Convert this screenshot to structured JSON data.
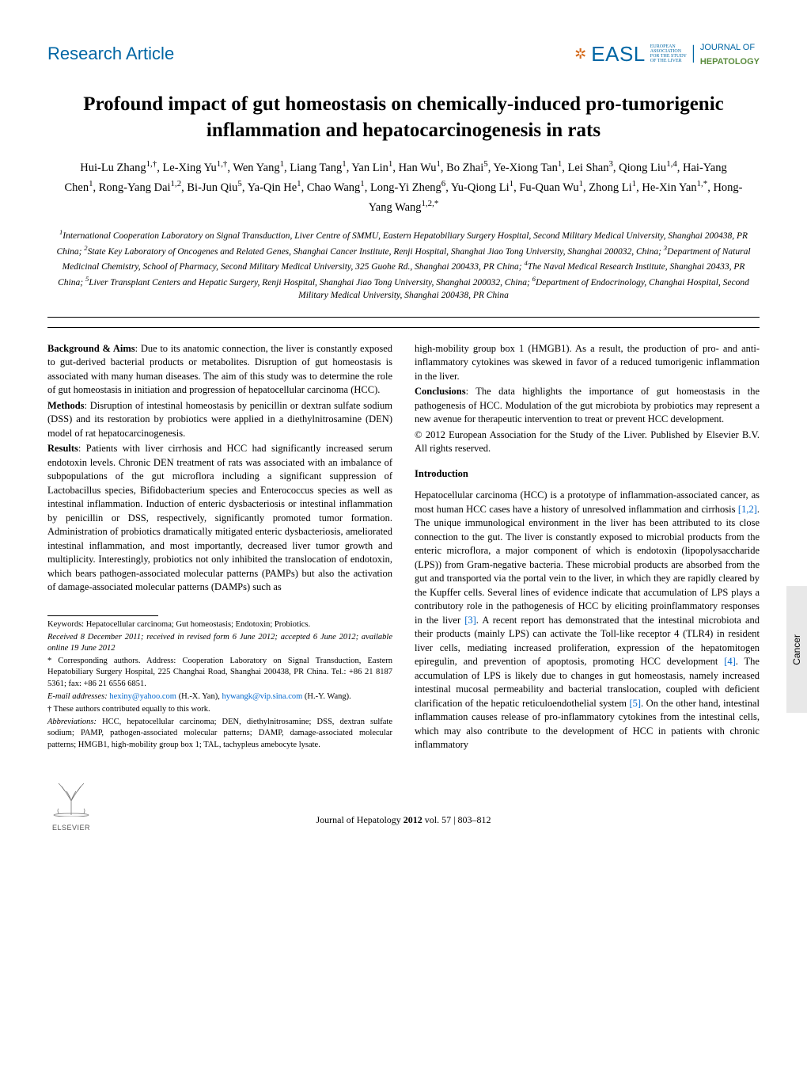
{
  "header": {
    "section_label": "Research Article",
    "logo": {
      "easl": "EASL",
      "easl_sub1": "EUROPEAN",
      "easl_sub2": "ASSOCIATION",
      "easl_sub3": "FOR THE STUDY",
      "easl_sub4": "OF THE LIVER",
      "journal_of": "JOURNAL OF",
      "hepatology": "HEPATOLOGY"
    }
  },
  "title": "Profound impact of gut homeostasis on chemically-induced pro-tumorigenic inflammation and hepatocarcinogenesis in rats",
  "authors_html": "Hui-Lu Zhang<sup>1,†</sup>, Le-Xing Yu<sup>1,†</sup>, Wen Yang<sup>1</sup>, Liang Tang<sup>1</sup>, Yan Lin<sup>1</sup>, Han Wu<sup>1</sup>, Bo Zhai<sup>5</sup>, Ye-Xiong Tan<sup>1</sup>, Lei Shan<sup>3</sup>, Qiong Liu<sup>1,4</sup>, Hai-Yang Chen<sup>1</sup>, Rong-Yang Dai<sup>1,2</sup>, Bi-Jun Qiu<sup>5</sup>, Ya-Qin He<sup>1</sup>, Chao Wang<sup>1</sup>, Long-Yi Zheng<sup>6</sup>, Yu-Qiong Li<sup>1</sup>, Fu-Quan Wu<sup>1</sup>, Zhong Li<sup>1</sup>, He-Xin Yan<sup>1,*</sup>, Hong-Yang Wang<sup>1,2,*</sup>",
  "affiliations_html": "<sup>1</sup>International Cooperation Laboratory on Signal Transduction, Liver Centre of SMMU, Eastern Hepatobiliary Surgery Hospital, Second Military Medical University, Shanghai 200438, PR China; <sup>2</sup>State Key Laboratory of Oncogenes and Related Genes, Shanghai Cancer Institute, Renji Hospital, Shanghai Jiao Tong University, Shanghai 200032, China; <sup>3</sup>Department of Natural Medicinal Chemistry, School of Pharmacy, Second Military Medical University, 325 Guohe Rd., Shanghai 200433, PR China; <sup>4</sup>The Naval Medical Research Institute, Shanghai 20433, PR China; <sup>5</sup>Liver Transplant Centers and Hepatic Surgery, Renji Hospital, Shanghai Jiao Tong University, Shanghai 200032, China; <sup>6</sup>Department of Endocrinology, Changhai Hospital, Second Military Medical University, Shanghai 200438, PR China",
  "abstract": {
    "background_label": "Background & Aims",
    "background": ": Due to its anatomic connection, the liver is constantly exposed to gut-derived bacterial products or metabolites. Disruption of gut homeostasis is associated with many human diseases. The aim of this study was to determine the role of gut homeostasis in initiation and progression of hepatocellular carcinoma (HCC).",
    "methods_label": "Methods",
    "methods": ": Disruption of intestinal homeostasis by penicillin or dextran sulfate sodium (DSS) and its restoration by probiotics were applied in a diethylnitrosamine (DEN) model of rat hepatocarcinogenesis.",
    "results_label": "Results",
    "results": ": Patients with liver cirrhosis and HCC had significantly increased serum endotoxin levels. Chronic DEN treatment of rats was associated with an imbalance of subpopulations of the gut microflora including a significant suppression of Lactobacillus species, Bifidobacterium species and Enterococcus species as well as intestinal inflammation. Induction of enteric dysbacteriosis or intestinal inflammation by penicillin or DSS, respectively, significantly promoted tumor formation. Administration of probiotics dramatically mitigated enteric dysbacteriosis, ameliorated intestinal inflammation, and most importantly, decreased liver tumor growth and multiplicity. Interestingly, probiotics not only inhibited the translocation of endotoxin, which bears pathogen-associated molecular patterns (PAMPs) but also the activation of damage-associated molecular patterns (DAMPs) such as",
    "results2": "high-mobility group box 1 (HMGB1). As a result, the production of pro- and anti-inflammatory cytokines was skewed in favor of a reduced tumorigenic inflammation in the liver.",
    "conclusions_label": "Conclusions",
    "conclusions": ": The data highlights the importance of gut homeostasis in the pathogenesis of HCC. Modulation of the gut microbiota by probiotics may represent a new avenue for therapeutic intervention to treat or prevent HCC development.",
    "copyright": "© 2012 European Association for the Study of the Liver. Published by Elsevier B.V. All rights reserved."
  },
  "intro_heading": "Introduction",
  "intro_body": "Hepatocellular carcinoma (HCC) is a prototype of inflammation-associated cancer, as most human HCC cases have a history of unresolved inflammation and cirrhosis [1,2]. The unique immunological environment in the liver has been attributed to its close connection to the gut. The liver is constantly exposed to microbial products from the enteric microflora, a major component of which is endotoxin (lipopolysaccharide (LPS)) from Gram-negative bacteria. These microbial products are absorbed from the gut and transported via the portal vein to the liver, in which they are rapidly cleared by the Kupffer cells. Several lines of evidence indicate that accumulation of LPS plays a contributory role in the pathogenesis of HCC by eliciting proinflammatory responses in the liver [3]. A recent report has demonstrated that the intestinal microbiota and their products (mainly LPS) can activate the Toll-like receptor 4 (TLR4) in resident liver cells, mediating increased proliferation, expression of the hepatomitogen epiregulin, and prevention of apoptosis, promoting HCC development [4]. The accumulation of LPS is likely due to changes in gut homeostasis, namely increased intestinal mucosal permeability and bacterial translocation, coupled with deficient clarification of the hepatic reticuloendothelial system [5]. On the other hand, intestinal inflammation causes release of pro-inflammatory cytokines from the intestinal cells, which may also contribute to the development of HCC in patients with chronic inflammatory",
  "intro_refs": [
    "[1,2]",
    "[3]",
    "[4]",
    "[5]"
  ],
  "footnotes": {
    "keywords": "Keywords: Hepatocellular carcinoma; Gut homeostasis; Endotoxin; Probiotics.",
    "received": "Received 8 December 2011; received in revised form 6 June 2012; accepted 6 June 2012; available online 19 June 2012",
    "corresponding": "* Corresponding authors. Address: Cooperation Laboratory on Signal Transduction, Eastern Hepatobiliary Surgery Hospital, 225 Changhai Road, Shanghai 200438, PR China. Tel.: +86 21 8187 5361; fax: +86 21 6556 6851.",
    "emails_label": "E-mail addresses:",
    "email1": "hexiny@yahoo.com",
    "email1_who": " (H.-X. Yan), ",
    "email2": "hywangk@vip.sina.com",
    "email2_who": " (H.-Y. Wang).",
    "equal": "† These authors contributed equally to this work.",
    "abbrev_label": "Abbreviations:",
    "abbrev": " HCC, hepatocellular carcinoma; DEN, diethylnitrosamine; DSS, dextran sulfate sodium; PAMP, pathogen-associated molecular patterns; DAMP, damage-associated molecular patterns; HMGB1, high-mobility group box 1; TAL, tachypleus amebocyte lysate."
  },
  "side_tab": "Cancer",
  "footer": {
    "publisher": "ELSEVIER",
    "citation_prefix": "Journal of Hepatology ",
    "year": "2012",
    "vol": " vol. 57 ",
    "pages": "| 803–812"
  },
  "colors": {
    "brand_blue": "#0066a4",
    "link_blue": "#0066cc",
    "green": "#5b8c3e",
    "orange": "#d4691a",
    "tab_bg": "#e8e8e8"
  }
}
